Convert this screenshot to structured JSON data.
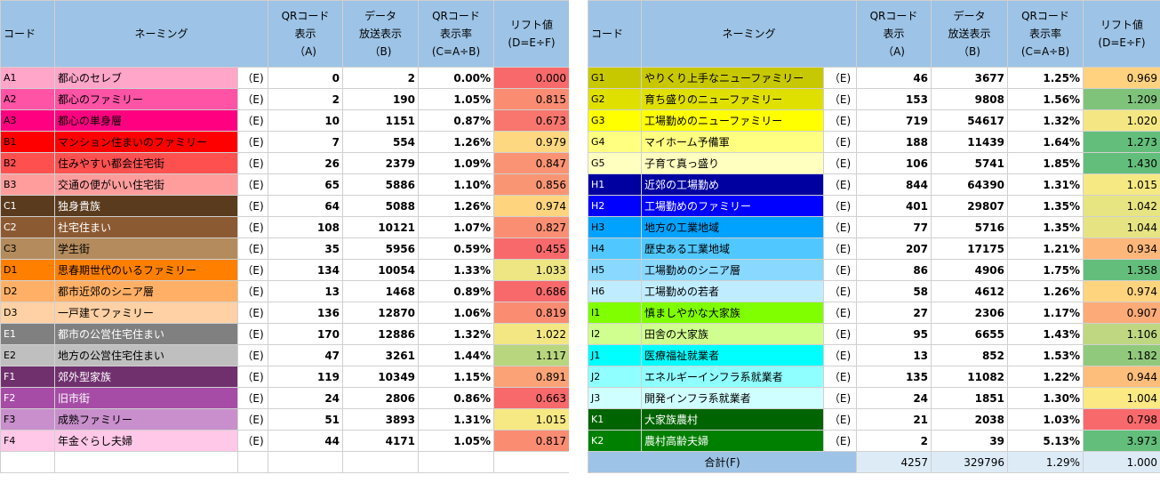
{
  "headers": {
    "code": "コード",
    "naming": "ネーミング",
    "qr_display": [
      "QRコード",
      "表示",
      "（A)"
    ],
    "data_broadcast": [
      "データ",
      "放送表示",
      "（B)"
    ],
    "qr_rate": [
      "QRコード",
      "表示率",
      "(C=A÷B)"
    ],
    "lift": [
      "リフト値",
      "(D=E÷F)"
    ]
  },
  "left_rows": [
    {
      "code": "A1",
      "name": "都心のセレブ",
      "e": "（E)",
      "a": "0",
      "b": "2",
      "c": "0.00%",
      "d": "0.000",
      "bg": "#ffa6c9",
      "fg": "#000000",
      "lift_bg": "#f8696b"
    },
    {
      "code": "A2",
      "name": "都心のファミリー",
      "e": "（E)",
      "a": "2",
      "b": "190",
      "c": "1.05%",
      "d": "0.815",
      "bg": "#ff53a6",
      "fg": "#000000",
      "lift_bg": "#fa8c72"
    },
    {
      "code": "A3",
      "name": "都心の単身層",
      "e": "（E)",
      "a": "10",
      "b": "1151",
      "c": "0.87%",
      "d": "0.673",
      "bg": "#ff0080",
      "fg": "#000000",
      "lift_bg": "#f9766e"
    },
    {
      "code": "B1",
      "name": "マンション住まいのファミリー",
      "e": "（E)",
      "a": "7",
      "b": "554",
      "c": "1.26%",
      "d": "0.979",
      "bg": "#ff0000",
      "fg": "#000000",
      "lift_bg": "#fed880"
    },
    {
      "code": "B2",
      "name": "住みやすい都会住宅街",
      "e": "（E)",
      "a": "26",
      "b": "2379",
      "c": "1.09%",
      "d": "0.847",
      "bg": "#ff5050",
      "fg": "#000000",
      "lift_bg": "#fa9374"
    },
    {
      "code": "B3",
      "name": "交通の便がいい住宅街",
      "e": "（E)",
      "a": "65",
      "b": "5886",
      "c": "1.10%",
      "d": "0.856",
      "bg": "#ff9d9d",
      "fg": "#000000",
      "lift_bg": "#fa9574"
    },
    {
      "code": "C1",
      "name": "独身貴族",
      "e": "（E)",
      "a": "64",
      "b": "5088",
      "c": "1.26%",
      "d": "0.974",
      "bg": "#5a3b1e",
      "fg": "#ffffff",
      "lift_bg": "#fed47f"
    },
    {
      "code": "C2",
      "name": "社宅住まい",
      "e": "（E)",
      "a": "108",
      "b": "10121",
      "c": "1.07%",
      "d": "0.827",
      "bg": "#8c5a32",
      "fg": "#ffffff",
      "lift_bg": "#fa8e73"
    },
    {
      "code": "C3",
      "name": "学生街",
      "e": "（E)",
      "a": "35",
      "b": "5956",
      "c": "0.59%",
      "d": "0.455",
      "bg": "#b38b5d",
      "fg": "#000000",
      "lift_bg": "#f8696b"
    },
    {
      "code": "D1",
      "name": "思春期世代のいるファミリー",
      "e": "（E)",
      "a": "134",
      "b": "10054",
      "c": "1.33%",
      "d": "1.033",
      "bg": "#ff8000",
      "fg": "#000000",
      "lift_bg": "#ede683"
    },
    {
      "code": "D2",
      "name": "都市近郊のシニア層",
      "e": "（E)",
      "a": "13",
      "b": "1468",
      "c": "0.89%",
      "d": "0.686",
      "bg": "#ffb066",
      "fg": "#000000",
      "lift_bg": "#f8696b"
    },
    {
      "code": "D3",
      "name": "一戸建てファミリー",
      "e": "（E)",
      "a": "136",
      "b": "12870",
      "c": "1.06%",
      "d": "0.819",
      "bg": "#ffd1a4",
      "fg": "#000000",
      "lift_bg": "#fa8c72"
    },
    {
      "code": "E1",
      "name": "都市の公営住宅住まい",
      "e": "（E)",
      "a": "170",
      "b": "12886",
      "c": "1.32%",
      "d": "1.022",
      "bg": "#808080",
      "fg": "#ffffff",
      "lift_bg": "#f3e783"
    },
    {
      "code": "E2",
      "name": "地方の公営住宅住まい",
      "e": "（E)",
      "a": "47",
      "b": "3261",
      "c": "1.44%",
      "d": "1.117",
      "bg": "#bfbfbf",
      "fg": "#000000",
      "lift_bg": "#b8d67e"
    },
    {
      "code": "F1",
      "name": "郊外型家族",
      "e": "（E)",
      "a": "119",
      "b": "10349",
      "c": "1.15%",
      "d": "0.891",
      "bg": "#70306e",
      "fg": "#ffffff",
      "lift_bg": "#fba276"
    },
    {
      "code": "F2",
      "name": "旧市街",
      "e": "（E)",
      "a": "24",
      "b": "2806",
      "c": "0.86%",
      "d": "0.663",
      "bg": "#a64ca6",
      "fg": "#ffffff",
      "lift_bg": "#f8696b"
    },
    {
      "code": "F3",
      "name": "成熟ファミリー",
      "e": "（E)",
      "a": "51",
      "b": "3893",
      "c": "1.31%",
      "d": "1.015",
      "bg": "#c88fcc",
      "fg": "#000000",
      "lift_bg": "#f6e883"
    },
    {
      "code": "F4",
      "name": "年金ぐらし夫婦",
      "e": "（E)",
      "a": "44",
      "b": "4171",
      "c": "1.05%",
      "d": "0.817",
      "bg": "#ffc8e8",
      "fg": "#000000",
      "lift_bg": "#fa8c72"
    }
  ],
  "right_rows": [
    {
      "code": "G1",
      "name": "やりくり上手なニューファミリー",
      "e": "（E)",
      "a": "46",
      "b": "3677",
      "c": "1.25%",
      "d": "0.969",
      "bg": "#c8c800",
      "fg": "#000000",
      "lift_bg": "#fed27f"
    },
    {
      "code": "G2",
      "name": "育ち盛りのニューファミリー",
      "e": "（E)",
      "a": "153",
      "b": "9808",
      "c": "1.56%",
      "d": "1.209",
      "bg": "#e0e000",
      "fg": "#000000",
      "lift_bg": "#7fc37b"
    },
    {
      "code": "G3",
      "name": "工場勤めのニューファミリー",
      "e": "（E)",
      "a": "719",
      "b": "54617",
      "c": "1.32%",
      "d": "1.020",
      "bg": "#ffff00",
      "fg": "#000000",
      "lift_bg": "#f4e783"
    },
    {
      "code": "G4",
      "name": "マイホーム予備軍",
      "e": "（E)",
      "a": "188",
      "b": "11439",
      "c": "1.64%",
      "d": "1.273",
      "bg": "#ffff80",
      "fg": "#000000",
      "lift_bg": "#63be7b"
    },
    {
      "code": "G5",
      "name": "子育て真っ盛り",
      "e": "（E)",
      "a": "106",
      "b": "5741",
      "c": "1.85%",
      "d": "1.430",
      "bg": "#ffffc0",
      "fg": "#000000",
      "lift_bg": "#63be7b"
    },
    {
      "code": "H1",
      "name": "近郊の工場勤め",
      "e": "（E)",
      "a": "844",
      "b": "64390",
      "c": "1.31%",
      "d": "1.015",
      "bg": "#0000a0",
      "fg": "#ffffff",
      "lift_bg": "#f6e883"
    },
    {
      "code": "H2",
      "name": "工場勤めのファミリー",
      "e": "（E)",
      "a": "401",
      "b": "29807",
      "c": "1.35%",
      "d": "1.042",
      "bg": "#0000ff",
      "fg": "#ffffff",
      "lift_bg": "#e7e482"
    },
    {
      "code": "H3",
      "name": "地方の工業地域",
      "e": "（E)",
      "a": "77",
      "b": "5716",
      "c": "1.35%",
      "d": "1.044",
      "bg": "#00a2ff",
      "fg": "#000000",
      "lift_bg": "#e6e482"
    },
    {
      "code": "H4",
      "name": "歴史ある工業地域",
      "e": "（E)",
      "a": "207",
      "b": "17175",
      "c": "1.21%",
      "d": "0.934",
      "bg": "#50c8ff",
      "fg": "#000000",
      "lift_bg": "#fdb77a"
    },
    {
      "code": "H5",
      "name": "工場勤めのシニア層",
      "e": "（E)",
      "a": "86",
      "b": "4906",
      "c": "1.75%",
      "d": "1.358",
      "bg": "#88d8ff",
      "fg": "#000000",
      "lift_bg": "#63be7b"
    },
    {
      "code": "H6",
      "name": "工場勤めの若者",
      "e": "（E)",
      "a": "58",
      "b": "4612",
      "c": "1.26%",
      "d": "0.974",
      "bg": "#c0ecff",
      "fg": "#000000",
      "lift_bg": "#fed47f"
    },
    {
      "code": "I1",
      "name": "慎ましやかな大家族",
      "e": "（E)",
      "a": "27",
      "b": "2306",
      "c": "1.17%",
      "d": "0.907",
      "bg": "#80ff00",
      "fg": "#000000",
      "lift_bg": "#fcaa77"
    },
    {
      "code": "I2",
      "name": "田舎の大家族",
      "e": "（E)",
      "a": "95",
      "b": "6655",
      "c": "1.43%",
      "d": "1.106",
      "bg": "#d0ff90",
      "fg": "#000000",
      "lift_bg": "#bed780"
    },
    {
      "code": "J1",
      "name": "医療福祉就業者",
      "e": "（E)",
      "a": "13",
      "b": "852",
      "c": "1.53%",
      "d": "1.182",
      "bg": "#00ffff",
      "fg": "#000000",
      "lift_bg": "#91c97c"
    },
    {
      "code": "J2",
      "name": "エネルギーインフラ系就業者",
      "e": "（E)",
      "a": "135",
      "b": "11082",
      "c": "1.22%",
      "d": "0.944",
      "bg": "#90ffff",
      "fg": "#000000",
      "lift_bg": "#fdbd7b"
    },
    {
      "code": "J3",
      "name": "開発インフラ系就業者",
      "e": "（E)",
      "a": "24",
      "b": "1851",
      "c": "1.30%",
      "d": "1.004",
      "bg": "#d0ffff",
      "fg": "#000000",
      "lift_bg": "#fbe983"
    },
    {
      "code": "K1",
      "name": "大家族農村",
      "e": "（E)",
      "a": "21",
      "b": "2038",
      "c": "1.03%",
      "d": "0.798",
      "bg": "#006400",
      "fg": "#ffffff",
      "lift_bg": "#f8696b"
    },
    {
      "code": "K2",
      "name": "農村高齢夫婦",
      "e": "（E)",
      "a": "2",
      "b": "39",
      "c": "5.13%",
      "d": "3.973",
      "bg": "#008000",
      "fg": "#ffffff",
      "lift_bg": "#63be7b"
    }
  ],
  "total": {
    "label": "合計(F)",
    "a": "4257",
    "b": "329796",
    "c": "1.29%",
    "d": "1.000"
  }
}
